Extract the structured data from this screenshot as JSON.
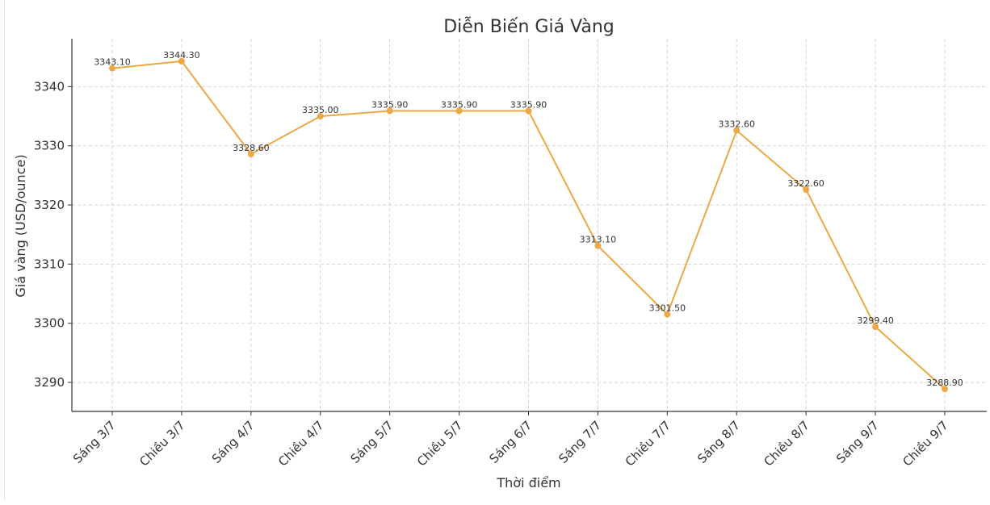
{
  "chart_data": {
    "type": "line",
    "title": "Diễn Biến Giá Vàng",
    "xlabel": "Thời điểm",
    "ylabel": "Giá vàng (USD/ounce)",
    "categories": [
      "Sáng 3/7",
      "Chiều 3/7",
      "Sáng 4/7",
      "Chiều 4/7",
      "Sáng 5/7",
      "Chiều 5/7",
      "Sáng 6/7",
      "Sáng 7/7",
      "Chiều 7/7",
      "Sáng 8/7",
      "Chiều 8/7",
      "Sáng 9/7",
      "Chiều 9/7"
    ],
    "series": [
      {
        "values": [
          3343.1,
          3344.3,
          3328.6,
          3335.0,
          3335.9,
          3335.9,
          3335.9,
          3313.1,
          3301.5,
          3332.6,
          3322.6,
          3299.4,
          3288.9
        ],
        "labels": [
          "3343.10",
          "3344.30",
          "3328.60",
          "3335.00",
          "3335.90",
          "3335.90",
          "3335.90",
          "3313.10",
          "3301.50",
          "3332.60",
          "3322.60",
          "3299.40",
          "3288.90"
        ]
      }
    ],
    "yticks": [
      3290,
      3300,
      3310,
      3320,
      3330,
      3340
    ],
    "ylim": [
      3285.1,
      3348.1
    ],
    "grid": true,
    "line_color": "#ECA844"
  }
}
